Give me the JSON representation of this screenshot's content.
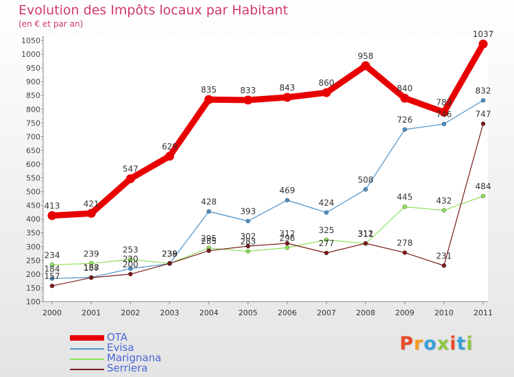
{
  "header": {
    "title": "Evolution des Impôts locaux par Habitant",
    "subtitle": "(en € et par an)"
  },
  "brand": {
    "letters": [
      "P",
      "r",
      "o",
      "x",
      "i",
      "t",
      "i"
    ],
    "colors": [
      "#e94a2a",
      "#f39a1b",
      "#3aa0d8",
      "#8cc63f",
      "#e94a2a",
      "#3aa0d8",
      "#8cc63f"
    ]
  },
  "chart_data": {
    "type": "line",
    "x": [
      "2000",
      "2001",
      "2002",
      "2003",
      "2004",
      "2005",
      "2006",
      "2007",
      "2008",
      "2009",
      "2010",
      "2011"
    ],
    "ylim": [
      100,
      1050
    ],
    "yticks": [
      100,
      150,
      200,
      250,
      300,
      350,
      400,
      450,
      500,
      550,
      600,
      650,
      700,
      750,
      800,
      850,
      900,
      950,
      1000,
      1050
    ],
    "grid": false,
    "legend_position": "bottom-left",
    "series": [
      {
        "name": "OTA",
        "color": "#e80000",
        "values": [
          413,
          421,
          547,
          629,
          835,
          833,
          843,
          860,
          958,
          840,
          789,
          1037
        ]
      },
      {
        "name": "Evisa",
        "color": "#4a90c8",
        "values": [
          184,
          188,
          220,
          238,
          428,
          393,
          469,
          424,
          508,
          726,
          746,
          832
        ]
      },
      {
        "name": "Marignana",
        "color": "#8ee05a",
        "values": [
          234,
          239,
          253,
          239,
          295,
          283,
          296,
          325,
          311,
          445,
          432,
          484
        ]
      },
      {
        "name": "Serriera",
        "color": "#7a1818",
        "values": [
          157,
          187,
          200,
          239,
          285,
          302,
          312,
          277,
          312,
          278,
          231,
          747
        ]
      }
    ]
  }
}
